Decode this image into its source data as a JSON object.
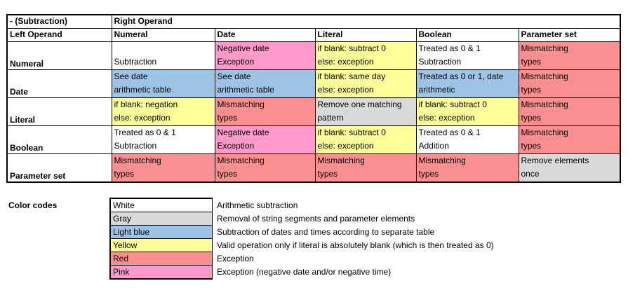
{
  "colors": {
    "white": "#FFFFFF",
    "gray": "#D9D9D9",
    "light_blue": "#9DC3E6",
    "yellow": "#FFFF99",
    "red": "#FB8F8F",
    "pink": "#FF99CC"
  },
  "table": {
    "corner_label": "- (Subtraction)",
    "right_operand_header": "Right Operand",
    "left_operand_header": "Left Operand",
    "columns": [
      "Numeral",
      "Date",
      "Literal",
      "Boolean",
      "Parameter set"
    ],
    "rows": [
      {
        "label": "Numeral",
        "cells": [
          {
            "color": "white",
            "lines": [
              "Subtraction"
            ]
          },
          {
            "color": "pink",
            "lines": [
              "Negative date",
              "Exception"
            ]
          },
          {
            "color": "yellow",
            "lines": [
              "if blank: subtract 0",
              "else: exception"
            ]
          },
          {
            "color": "white",
            "lines": [
              "Treated as 0 & 1",
              "Subtraction"
            ]
          },
          {
            "color": "red",
            "lines": [
              "Mismatching",
              "types"
            ]
          }
        ]
      },
      {
        "label": "Date",
        "cells": [
          {
            "color": "light_blue",
            "lines": [
              "See date",
              "arithmetic table"
            ]
          },
          {
            "color": "light_blue",
            "lines": [
              "See date",
              "arithmetic table"
            ]
          },
          {
            "color": "yellow",
            "lines": [
              "if blank: same day",
              "else: exception"
            ]
          },
          {
            "color": "light_blue",
            "lines": [
              "Treated as 0 or 1, date",
              "arithmetic"
            ]
          },
          {
            "color": "red",
            "lines": [
              "Mismatching",
              "types"
            ]
          }
        ]
      },
      {
        "label": "Literal",
        "cells": [
          {
            "color": "yellow",
            "lines": [
              "if blank: negation",
              "else: exception"
            ]
          },
          {
            "color": "red",
            "lines": [
              "Mismatching",
              "types"
            ]
          },
          {
            "color": "gray",
            "lines": [
              "Remove one matching",
              "pattern"
            ]
          },
          {
            "color": "yellow",
            "lines": [
              "if blank: subtract 0",
              "else: exception"
            ]
          },
          {
            "color": "red",
            "lines": [
              "Mismatching",
              "types"
            ]
          }
        ]
      },
      {
        "label": "Boolean",
        "cells": [
          {
            "color": "white",
            "lines": [
              "Treated as 0 & 1",
              "Subtraction"
            ]
          },
          {
            "color": "pink",
            "lines": [
              "Negative date",
              "Exception"
            ]
          },
          {
            "color": "yellow",
            "lines": [
              "if blank: subtract 0",
              "else: exception"
            ]
          },
          {
            "color": "white",
            "lines": [
              "Treated as 0 & 1",
              "Addition"
            ]
          },
          {
            "color": "red",
            "lines": [
              "Mismatching",
              "types"
            ]
          }
        ]
      },
      {
        "label": "Parameter set",
        "cells": [
          {
            "color": "red",
            "lines": [
              "Mismatching",
              "types"
            ]
          },
          {
            "color": "red",
            "lines": [
              "Mismatching",
              "types"
            ]
          },
          {
            "color": "red",
            "lines": [
              "Mismatching",
              "types"
            ]
          },
          {
            "color": "red",
            "lines": [
              "Mismatching",
              "types"
            ]
          },
          {
            "color": "gray",
            "lines": [
              "Remove elements",
              "once"
            ]
          }
        ]
      }
    ]
  },
  "legend": {
    "title": "Color codes",
    "entries": [
      {
        "name": "White",
        "color": "white",
        "description": "Arithmetic subtraction"
      },
      {
        "name": "Gray",
        "color": "gray",
        "description": "Removal of string segments and parameter elements"
      },
      {
        "name": "Light blue",
        "color": "light_blue",
        "description": "Subtraction of dates and times according to separate table"
      },
      {
        "name": "Yellow",
        "color": "yellow",
        "description": "Valid operation only if literal is absolutely blank (which is then treated as 0)"
      },
      {
        "name": "Red",
        "color": "red",
        "description": "Exception"
      },
      {
        "name": "Pink",
        "color": "pink",
        "description": "Exception (negative date and/or negative time)"
      }
    ]
  }
}
